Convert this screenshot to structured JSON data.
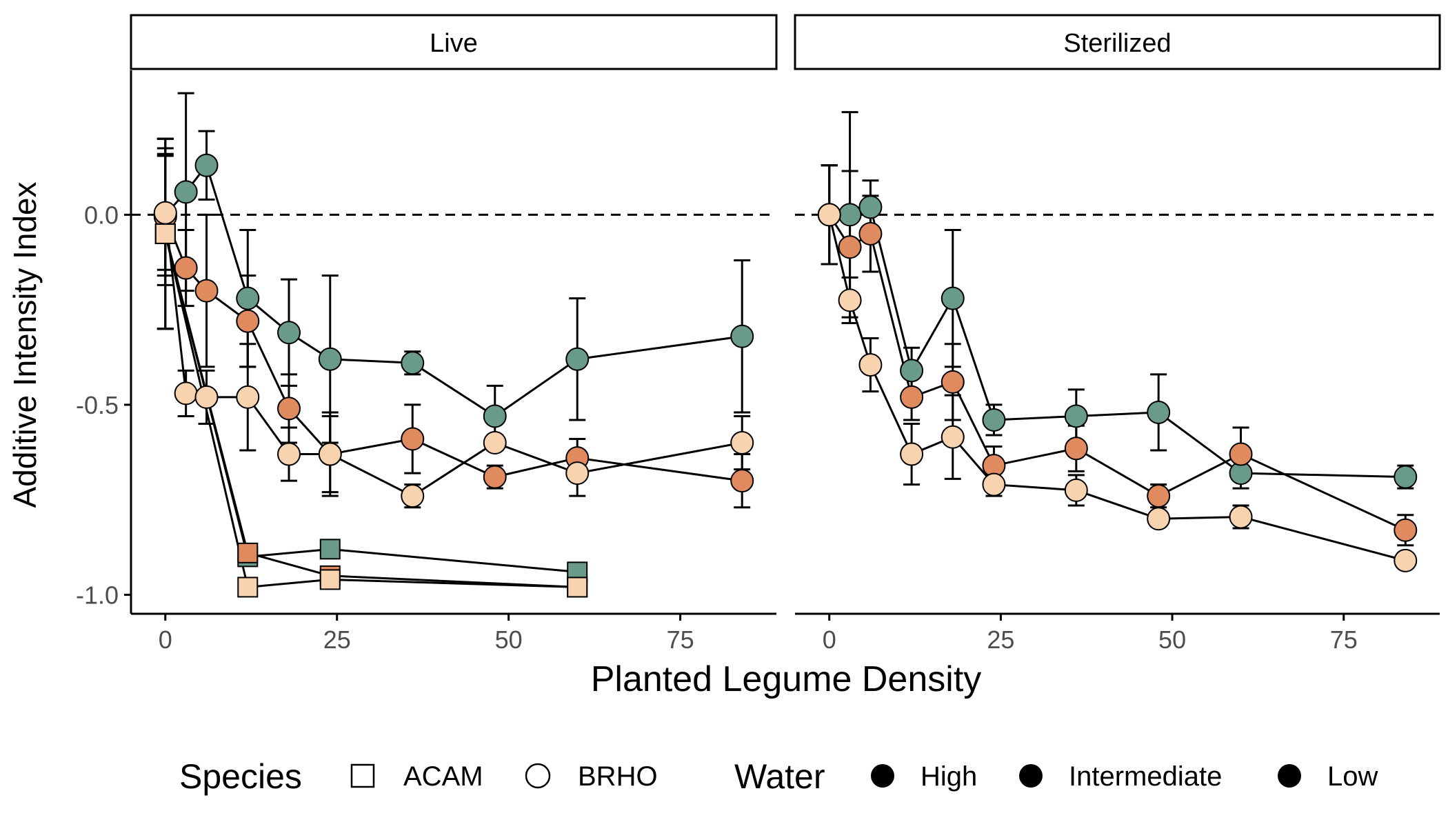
{
  "chart_data": {
    "type": "scatter",
    "ylabel": "Additive Intensity Index",
    "xlabel": "Planted Legume Density",
    "x_ticks": [
      0,
      25,
      50,
      75
    ],
    "y_ticks": [
      0.0,
      -0.5,
      -1.0
    ],
    "y_tick_labels": [
      "0.0",
      "-0.5",
      "-1.0"
    ],
    "xlim": [
      -5,
      89
    ],
    "ylim": [
      -1.05,
      0.38
    ],
    "reference_line_y": 0,
    "water_colors": {
      "High": "#6a9a8a",
      "Intermediate": "#e08a60",
      "Low": "#f7d3b0"
    },
    "legend": {
      "position": "bottom",
      "species_title": "Species",
      "species": [
        "ACAM",
        "BRHO"
      ],
      "water_title": "Water",
      "water": [
        "High",
        "Intermediate",
        "Low"
      ]
    },
    "panels": [
      {
        "label": "Live",
        "series": [
          {
            "species": "BRHO",
            "water": "High",
            "x": [
              0,
              3,
              6,
              12,
              18,
              24,
              36,
              48,
              60,
              84
            ],
            "y": [
              0.0,
              0.06,
              0.13,
              -0.22,
              -0.31,
              -0.38,
              -0.39,
              -0.53,
              -0.38,
              -0.32
            ],
            "err": [
              0.16,
              0.26,
              0.09,
              0.18,
              0.14,
              0.22,
              0.03,
              0.08,
              0.16,
              0.2
            ]
          },
          {
            "species": "BRHO",
            "water": "Intermediate",
            "x": [
              0,
              3,
              6,
              12,
              18,
              24,
              36,
              48,
              60,
              84
            ],
            "y": [
              -0.005,
              -0.14,
              -0.2,
              -0.28,
              -0.51,
              -0.63,
              -0.59,
              -0.69,
              -0.64,
              -0.7
            ],
            "err": [
              0.18,
              0.1,
              0.2,
              0.12,
              0.09,
              0.11,
              0.09,
              0.03,
              0.05,
              0.07
            ]
          },
          {
            "species": "BRHO",
            "water": "Low",
            "x": [
              0,
              3,
              6,
              12,
              18,
              24,
              36,
              48,
              60,
              84
            ],
            "y": [
              0.005,
              -0.47,
              -0.48,
              -0.48,
              -0.63,
              -0.63,
              -0.74,
              -0.6,
              -0.68,
              -0.6
            ],
            "err": [
              0.15,
              0.06,
              0.07,
              0.14,
              0.07,
              0.1,
              0.03,
              0.02,
              0.06,
              0.07
            ]
          },
          {
            "species": "ACAM",
            "water": "High",
            "x": [
              0,
              12,
              24,
              60
            ],
            "y": [
              -0.05,
              -0.9,
              -0.88,
              -0.94
            ],
            "err": [
              0.25,
              0.0,
              0.0,
              0.0
            ]
          },
          {
            "species": "ACAM",
            "water": "Intermediate",
            "x": [
              0,
              12,
              24,
              60
            ],
            "y": [
              -0.05,
              -0.89,
              -0.95,
              -0.98
            ],
            "err": [
              0.25,
              0.0,
              0.0,
              0.0
            ]
          },
          {
            "species": "ACAM",
            "water": "Low",
            "x": [
              0,
              12,
              24,
              60
            ],
            "y": [
              -0.05,
              -0.98,
              -0.96,
              -0.98
            ],
            "err": [
              0.25,
              0.0,
              0.0,
              0.0
            ]
          }
        ]
      },
      {
        "label": "Sterilized",
        "series": [
          {
            "species": "BRHO",
            "water": "High",
            "x": [
              0,
              3,
              6,
              12,
              18,
              24,
              36,
              48,
              60,
              84
            ],
            "y": [
              0.0,
              0.0,
              0.02,
              -0.41,
              -0.22,
              -0.54,
              -0.53,
              -0.52,
              -0.68,
              -0.69
            ],
            "err": [
              0.13,
              0.27,
              0.07,
              0.06,
              0.18,
              0.04,
              0.07,
              0.1,
              0.04,
              0.03
            ]
          },
          {
            "species": "BRHO",
            "water": "Intermediate",
            "x": [
              0,
              3,
              6,
              12,
              18,
              24,
              36,
              48,
              60,
              84
            ],
            "y": [
              0.0,
              -0.085,
              -0.05,
              -0.48,
              -0.44,
              -0.66,
              -0.615,
              -0.74,
              -0.63,
              -0.83
            ],
            "err": [
              0.13,
              0.2,
              0.1,
              0.06,
              0.1,
              0.05,
              0.06,
              0.03,
              0.07,
              0.04
            ]
          },
          {
            "species": "BRHO",
            "water": "Low",
            "x": [
              0,
              3,
              6,
              12,
              18,
              24,
              36,
              48,
              60,
              84
            ],
            "y": [
              0.0,
              -0.225,
              -0.395,
              -0.63,
              -0.585,
              -0.71,
              -0.725,
              -0.8,
              -0.795,
              -0.91
            ],
            "err": [
              0.13,
              0.06,
              0.07,
              0.08,
              0.11,
              0.03,
              0.04,
              0.02,
              0.03,
              0.02
            ]
          }
        ]
      }
    ]
  }
}
